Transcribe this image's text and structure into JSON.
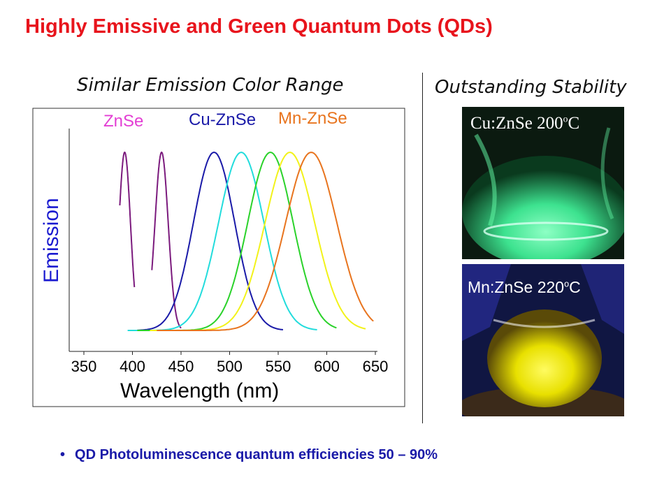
{
  "slide": {
    "title": "Highly Emissive and Green Quantum Dots (QDs)",
    "left_heading": "Similar Emission Color Range",
    "right_heading": "Outstanding Stability",
    "bullet": "QD Photoluminescence quantum efficiencies 50 – 90%"
  },
  "photos": [
    {
      "label_main": "Cu:ZnSe 200",
      "label_sup": "o",
      "label_end": "C",
      "glow_color": "#33ff99"
    },
    {
      "label_main": "Mn:ZnSe 220",
      "label_sup": "o",
      "label_end": "C",
      "glow_color": "#f2f000"
    }
  ],
  "chart_data": {
    "type": "line",
    "xlabel": "Wavelength (nm)",
    "ylabel": "Emission",
    "xlim": [
      350,
      650
    ],
    "xticks": [
      350,
      400,
      450,
      500,
      550,
      600,
      650
    ],
    "grid": false,
    "legend": [
      {
        "name": "ZnSe",
        "color": "#e33fd4"
      },
      {
        "name": "Cu-ZnSe",
        "color": "#1a1aa8"
      },
      {
        "name": "Mn-ZnSe",
        "color": "#e8741e"
      }
    ],
    "series": [
      {
        "color": "#7b1a7d",
        "peak": 392,
        "fwhm": 14,
        "start": 387,
        "end": 402
      },
      {
        "color": "#7b1a7d",
        "peak": 430,
        "fwhm": 16,
        "start": 420,
        "end": 450
      },
      {
        "color": "#1a1aa8",
        "peak": 484,
        "fwhm": 50,
        "start": 405,
        "end": 555
      },
      {
        "color": "#22dcdc",
        "peak": 512,
        "fwhm": 55,
        "start": 395,
        "end": 590
      },
      {
        "color": "#2ad22a",
        "peak": 542,
        "fwhm": 55,
        "start": 405,
        "end": 610
      },
      {
        "color": "#f2f21a",
        "peak": 562,
        "fwhm": 60,
        "start": 418,
        "end": 640
      },
      {
        "color": "#e8741e",
        "peak": 584,
        "fwhm": 62,
        "start": 425,
        "end": 648
      }
    ]
  }
}
